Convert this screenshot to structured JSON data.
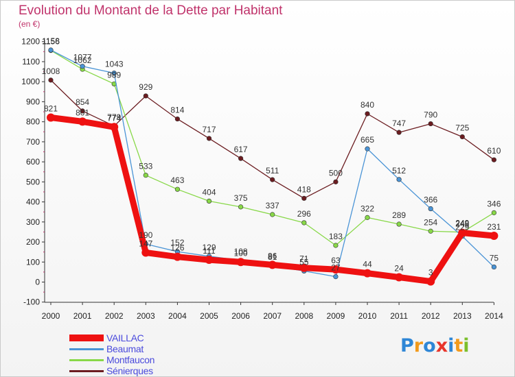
{
  "title": "Evolution du Montant de la Dette par Habitant",
  "unit": "(en €)",
  "logo": {
    "text": "Proxiti",
    "letters": [
      {
        "ch": "P",
        "color": "#2e86d6"
      },
      {
        "ch": "r",
        "color": "#f29a1c"
      },
      {
        "ch": "o",
        "color": "#2e86d6"
      },
      {
        "ch": "x",
        "color": "#e8352b"
      },
      {
        "ch": "i",
        "color": "#2e86d6"
      },
      {
        "ch": "t",
        "color": "#f29a1c"
      },
      {
        "ch": "i",
        "color": "#7bbf2c"
      }
    ]
  },
  "chart_data": {
    "type": "line",
    "title": "Evolution du Montant de la Dette par Habitant",
    "ylabel": "(en €)",
    "xlabel": "",
    "categories": [
      "2000",
      "2001",
      "2002",
      "2003",
      "2004",
      "2005",
      "2006",
      "2007",
      "2008",
      "2009",
      "2010",
      "2011",
      "2012",
      "2013",
      "2014"
    ],
    "ylim": [
      -100,
      1200
    ],
    "yticks": [
      -100,
      0,
      100,
      200,
      300,
      400,
      500,
      600,
      700,
      800,
      900,
      1000,
      1100,
      1200
    ],
    "grid": false,
    "legend": "bottom-left",
    "series": [
      {
        "name": "Sénierques",
        "color": "#6b1c20",
        "values": [
          1008,
          854,
          779,
          929,
          814,
          717,
          617,
          511,
          418,
          500,
          840,
          747,
          790,
          725,
          610
        ],
        "labels": [
          "1008",
          "854",
          "779",
          "929",
          "814",
          "717",
          "617",
          "511",
          "418",
          "500",
          "840",
          "747",
          "790",
          "725",
          "610"
        ]
      },
      {
        "name": "Montfaucon",
        "color": "#88d848",
        "values": [
          1156,
          1062,
          989,
          533,
          463,
          404,
          375,
          337,
          296,
          183,
          322,
          289,
          254,
          249,
          346
        ],
        "labels": [
          "1156",
          "1062",
          "989",
          "533",
          "463",
          "404",
          "375",
          "337",
          "296",
          "183",
          "322",
          "289",
          "254",
          "249",
          "346"
        ]
      },
      {
        "name": "Beaumat",
        "color": "#4a94d6",
        "values": [
          1158,
          1077,
          1043,
          190,
          152,
          129,
          108,
          81,
          55,
          27,
          665,
          512,
          366,
          229,
          75
        ],
        "labels": [
          "1158",
          "1077",
          "1043",
          "190",
          "152",
          "129",
          "108",
          "81",
          "55",
          "27",
          "665",
          "512",
          "366",
          "229",
          "75"
        ]
      },
      {
        "name": "VAILLAC",
        "color": "#ee1111",
        "values": [
          821,
          801,
          774,
          147,
          126,
          111,
          100,
          86,
          71,
          63,
          44,
          24,
          3,
          246,
          231
        ],
        "labels": [
          "821",
          "801",
          "774",
          "147",
          "126",
          "111",
          "100",
          "86",
          "71",
          "63",
          "44",
          "24",
          "3",
          "246",
          "231"
        ]
      }
    ]
  },
  "legend_order": [
    "VAILLAC",
    "Beaumat",
    "Montfaucon",
    "Sénierques"
  ]
}
